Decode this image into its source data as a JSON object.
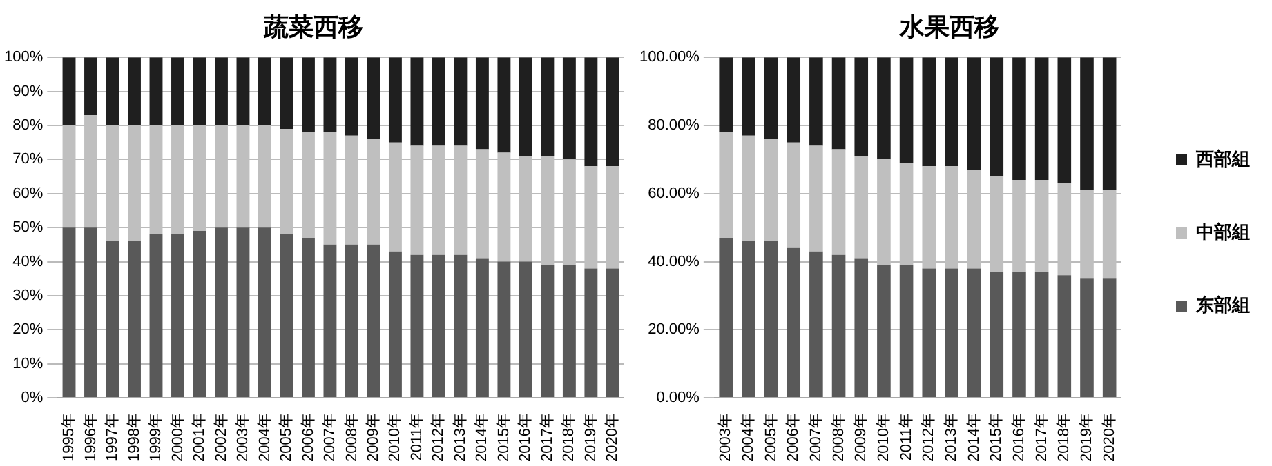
{
  "chart_data": [
    {
      "type": "bar",
      "title": "蔬菜西移",
      "stacked": true,
      "grid": "y",
      "legend": false,
      "categories": [
        "1995年",
        "1996年",
        "1997年",
        "1998年",
        "1999年",
        "2000年",
        "2001年",
        "2002年",
        "2003年",
        "2004年",
        "2005年",
        "2006年",
        "2007年",
        "2008年",
        "2009年",
        "2010年",
        "2011年",
        "2012年",
        "2013年",
        "2014年",
        "2015年",
        "2016年",
        "2017年",
        "2018年",
        "2019年",
        "2020年"
      ],
      "ylim": [
        0,
        100
      ],
      "yticks": [
        {
          "value": 0,
          "label": "0%"
        },
        {
          "value": 10,
          "label": "10%"
        },
        {
          "value": 20,
          "label": "20%"
        },
        {
          "value": 30,
          "label": "30%"
        },
        {
          "value": 40,
          "label": "40%"
        },
        {
          "value": 50,
          "label": "50%"
        },
        {
          "value": 60,
          "label": "60%"
        },
        {
          "value": 70,
          "label": "70%"
        },
        {
          "value": 80,
          "label": "80%"
        },
        {
          "value": 90,
          "label": "90%"
        },
        {
          "value": 100,
          "label": "100%"
        }
      ],
      "series": [
        {
          "color": "#595959",
          "values": [
            50,
            50,
            46,
            46,
            48,
            48,
            49,
            50,
            50,
            50,
            48,
            47,
            45,
            45,
            45,
            43,
            42,
            42,
            42,
            41,
            40,
            40,
            39,
            39,
            38,
            38
          ]
        },
        {
          "color": "#bfbfbf",
          "values": [
            30,
            33,
            34,
            34,
            32,
            32,
            31,
            30,
            30,
            30,
            31,
            31,
            33,
            32,
            31,
            32,
            32,
            32,
            32,
            32,
            32,
            31,
            32,
            31,
            30,
            30
          ]
        },
        {
          "color": "#1f1f1f",
          "values": [
            20,
            17,
            20,
            20,
            20,
            20,
            20,
            20,
            20,
            20,
            21,
            22,
            22,
            23,
            24,
            25,
            26,
            26,
            26,
            27,
            28,
            29,
            29,
            30,
            32,
            32
          ]
        }
      ]
    },
    {
      "type": "bar",
      "title": "水果西移",
      "stacked": true,
      "grid": "y",
      "legend": "right",
      "categories": [
        "2003年",
        "2004年",
        "2005年",
        "2006年",
        "2007年",
        "2008年",
        "2009年",
        "2010年",
        "2011年",
        "2012年",
        "2013年",
        "2014年",
        "2015年",
        "2016年",
        "2017年",
        "2018年",
        "2019年",
        "2020年"
      ],
      "ylim": [
        0,
        100
      ],
      "yticks": [
        {
          "value": 0,
          "label": "0.00%"
        },
        {
          "value": 20,
          "label": "20.00%"
        },
        {
          "value": 40,
          "label": "40.00%"
        },
        {
          "value": 60,
          "label": "60.00%"
        },
        {
          "value": 80,
          "label": "80.00%"
        },
        {
          "value": 100,
          "label": "100.00%"
        }
      ],
      "series": [
        {
          "name": "东部組",
          "color": "#595959",
          "values": [
            47,
            46,
            46,
            44,
            43,
            42,
            41,
            39,
            39,
            38,
            38,
            38,
            37,
            37,
            37,
            36,
            35,
            35
          ]
        },
        {
          "name": "中部組",
          "color": "#bfbfbf",
          "values": [
            31,
            31,
            30,
            31,
            31,
            31,
            30,
            31,
            30,
            30,
            30,
            29,
            28,
            27,
            27,
            27,
            26,
            26
          ]
        },
        {
          "name": "西部組",
          "color": "#1f1f1f",
          "values": [
            22,
            23,
            24,
            25,
            26,
            27,
            29,
            30,
            31,
            32,
            32,
            33,
            35,
            36,
            36,
            37,
            39,
            39
          ]
        }
      ]
    }
  ]
}
